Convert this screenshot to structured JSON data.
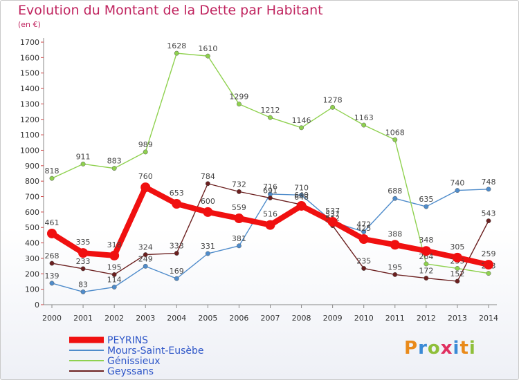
{
  "title": "Evolution du Montant de la Dette par Habitant",
  "unit_label": "(en €)",
  "logo_text": "Proxiti",
  "chart_data": {
    "type": "line",
    "x": [
      "2000",
      "2001",
      "2002",
      "2003",
      "2004",
      "2005",
      "2006",
      "2007",
      "2008",
      "2009",
      "2010",
      "2011",
      "2012",
      "2013",
      "2014"
    ],
    "ylim": [
      0,
      1700
    ],
    "yticks": [
      0,
      100,
      200,
      300,
      400,
      500,
      600,
      700,
      800,
      900,
      1000,
      1100,
      1200,
      1300,
      1400,
      1500,
      1600,
      1700
    ],
    "grid": false,
    "legend": "bottom-left",
    "series": [
      {
        "name": "Mours-Saint-Eusèbe",
        "color": "#4f8ccb",
        "values": [
          139,
          83,
          114,
          249,
          169,
          331,
          381,
          716,
          710,
          537,
          472,
          688,
          635,
          740,
          748
        ]
      },
      {
        "name": "Génissieux",
        "color": "#8fd14f",
        "values": [
          818,
          911,
          883,
          989,
          1628,
          1610,
          1299,
          1212,
          1146,
          1278,
          1163,
          1068,
          264,
          235,
          203
        ]
      },
      {
        "name": "Geyssans",
        "color": "#6b1f1f",
        "values": [
          268,
          233,
          195,
          324,
          333,
          784,
          732,
          691,
          648,
          512,
          235,
          195,
          172,
          152,
          543
        ]
      },
      {
        "name": "PEYRINS",
        "color": "#f01010",
        "values": [
          461,
          335,
          318,
          760,
          653,
          600,
          559,
          516,
          640,
          537,
          425,
          388,
          348,
          305,
          259
        ]
      }
    ]
  }
}
